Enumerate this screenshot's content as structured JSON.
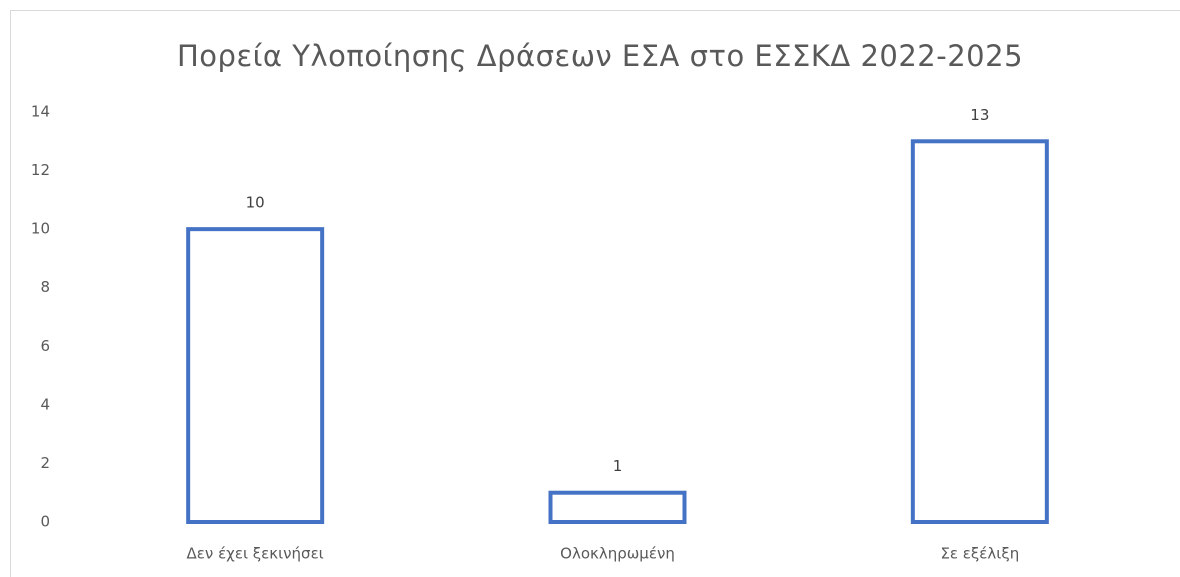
{
  "chart_data": {
    "type": "bar",
    "title": "Πορεία Υλοποίησης Δράσεων ΕΣΑ στο ΕΣΣΚΔ 2022-2025",
    "categories": [
      "Δεν έχει ξεκινήσει",
      "Ολοκληρωμένη",
      "Σε εξέλιξη"
    ],
    "values": [
      10,
      1,
      13
    ],
    "color": "#4472c4",
    "ylim": [
      0,
      14
    ],
    "yticks": [
      0,
      2,
      4,
      6,
      8,
      10,
      12,
      14
    ],
    "grid": false
  }
}
